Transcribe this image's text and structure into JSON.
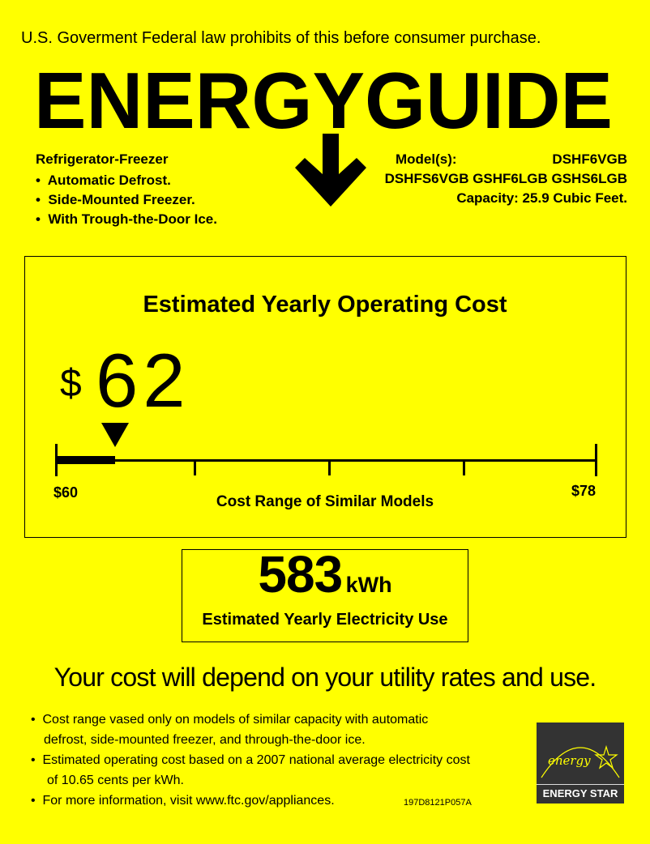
{
  "notice": "U.S. Goverment Federal law prohibits of this before consumer purchase.",
  "logo_text": "ENERGYGUIDE",
  "appliance": {
    "type": "Refrigerator-Freezer",
    "features": [
      "Automatic Defrost.",
      "Side-Mounted Freezer.",
      "With Trough-the-Door Ice."
    ]
  },
  "models": {
    "label": "Model(s):",
    "primary": "DSHF6VGB",
    "others": "DSHFS6VGB GSHF6LGB GSHS6LGB",
    "capacity": "Capacity: 25.9 Cubic Feet."
  },
  "cost": {
    "title": "Estimated Yearly Operating Cost",
    "currency": "$",
    "value": "62",
    "range_min_label": "$60",
    "range_max_label": "$78",
    "range_min": 60,
    "range_max": 78,
    "current": 62,
    "range_caption": "Cost Range of Similar Models"
  },
  "electricity": {
    "value": "583",
    "unit": "kWh",
    "caption": "Estimated Yearly Electricity Use"
  },
  "disclaimer": "Your cost will depend on your utility rates and use.",
  "notes": [
    {
      "line1": "Cost range vased only on models of similar capacity with automatic",
      "line2": "defrost, side-mounted freezer, and through-the-door ice."
    },
    {
      "line1": "Estimated operating cost based on a 2007 national average electricity cost",
      "line2": "of 10.65 cents per kWh."
    },
    {
      "line1": "For more information, visit www.ftc.gov/appliances.",
      "line2": ""
    }
  ],
  "label_code": "197D8121P057A",
  "energy_star": {
    "script": "energy",
    "label": "ENERGY STAR"
  },
  "colors": {
    "background": "#ffff00",
    "ink": "#000000",
    "energy_star_bg": "#333333"
  }
}
